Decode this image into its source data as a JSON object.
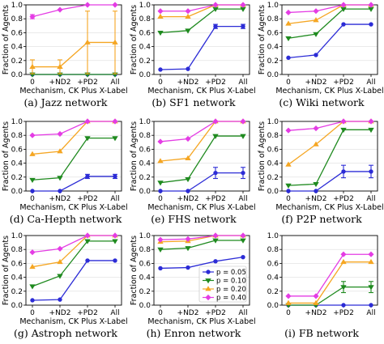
{
  "figure": {
    "colors": {
      "p005": "#2c2cd6",
      "p010": "#1f8a1f",
      "p020": "#f5a623",
      "p040": "#e43ce4"
    },
    "legend": {
      "entries": [
        "p = 0.05",
        "p = 0.10",
        "p = 0.20",
        "p = 0.40"
      ]
    }
  },
  "chart_data": [
    {
      "type": "line",
      "title": "(a) Jazz network",
      "xlabel": "Mechanism, CK Plus X-Label",
      "ylabel": "Fraction of Agents",
      "categories": [
        "0",
        "+ND2",
        "+PD2",
        "All"
      ],
      "yticks": [
        "0.0",
        "0.2",
        "0.4",
        "0.6",
        "0.8",
        "1.0"
      ],
      "ylim": [
        0,
        1
      ],
      "grid": true,
      "series": [
        {
          "key": "p005",
          "values": [
            0.0,
            0.0,
            0.0,
            0.0
          ]
        },
        {
          "key": "p010",
          "values": [
            0.0,
            0.0,
            0.0,
            0.0
          ]
        },
        {
          "key": "p020",
          "values": [
            0.11,
            0.11,
            0.46,
            0.46
          ],
          "err": [
            0.1,
            0.1,
            0.45,
            0.45
          ]
        },
        {
          "key": "p040",
          "values": [
            0.83,
            0.93,
            1.0,
            1.0
          ],
          "err": [
            0.03,
            0,
            0,
            0
          ]
        }
      ]
    },
    {
      "type": "line",
      "title": "(b) SF1 network",
      "xlabel": "Mechanism, CK Plus X-Label",
      "ylabel": "Fraction of Agents",
      "categories": [
        "0",
        "+ND2",
        "+PD2",
        "All"
      ],
      "yticks": [
        "0.0",
        "0.2",
        "0.4",
        "0.6",
        "0.8",
        "1.0"
      ],
      "ylim": [
        0,
        1
      ],
      "grid": true,
      "series": [
        {
          "key": "p005",
          "values": [
            0.07,
            0.08,
            0.69,
            0.69
          ],
          "err": [
            0,
            0,
            0.03,
            0.03
          ]
        },
        {
          "key": "p010",
          "values": [
            0.6,
            0.63,
            0.94,
            0.94
          ]
        },
        {
          "key": "p020",
          "values": [
            0.83,
            0.83,
            1.0,
            1.0
          ]
        },
        {
          "key": "p040",
          "values": [
            0.91,
            0.91,
            1.0,
            1.0
          ]
        }
      ]
    },
    {
      "type": "line",
      "title": "(c) Wiki network",
      "xlabel": "Mechanism, CK Plus X-Label",
      "ylabel": "Fraction of Agents",
      "categories": [
        "0",
        "+ND2",
        "+PD2",
        "All"
      ],
      "yticks": [
        "0.0",
        "0.2",
        "0.4",
        "0.6",
        "0.8",
        "1.0"
      ],
      "ylim": [
        0,
        1
      ],
      "grid": true,
      "series": [
        {
          "key": "p005",
          "values": [
            0.24,
            0.28,
            0.72,
            0.72
          ]
        },
        {
          "key": "p010",
          "values": [
            0.52,
            0.58,
            0.94,
            0.94
          ]
        },
        {
          "key": "p020",
          "values": [
            0.73,
            0.78,
            1.0,
            1.0
          ]
        },
        {
          "key": "p040",
          "values": [
            0.89,
            0.91,
            1.0,
            1.0
          ]
        }
      ]
    },
    {
      "type": "line",
      "title": "(d) Ca-Hepth network",
      "xlabel": "Mechanism, CK Plus X-Label",
      "ylabel": "Fraction of Agents",
      "categories": [
        "0",
        "+ND2",
        "+PD2",
        "All"
      ],
      "yticks": [
        "0.0",
        "0.2",
        "0.4",
        "0.6",
        "0.8",
        "1.0"
      ],
      "ylim": [
        0,
        1
      ],
      "grid": true,
      "series": [
        {
          "key": "p005",
          "values": [
            0.0,
            0.0,
            0.21,
            0.21
          ],
          "err": [
            0,
            0,
            0.03,
            0.03
          ]
        },
        {
          "key": "p010",
          "values": [
            0.16,
            0.19,
            0.76,
            0.76
          ]
        },
        {
          "key": "p020",
          "values": [
            0.53,
            0.57,
            1.0,
            1.0
          ]
        },
        {
          "key": "p040",
          "values": [
            0.8,
            0.82,
            1.0,
            1.0
          ]
        }
      ]
    },
    {
      "type": "line",
      "title": "(e) FHS network",
      "xlabel": "Mechanism, CK Plus X-Label",
      "ylabel": "Fraction of Agents",
      "categories": [
        "0",
        "+ND2",
        "+PD2",
        "All"
      ],
      "yticks": [
        "0.0",
        "0.2",
        "0.4",
        "0.6",
        "0.8",
        "1.0"
      ],
      "ylim": [
        0,
        1
      ],
      "grid": true,
      "series": [
        {
          "key": "p005",
          "values": [
            0.0,
            0.0,
            0.26,
            0.26
          ],
          "err": [
            0,
            0,
            0.08,
            0.08
          ]
        },
        {
          "key": "p010",
          "values": [
            0.12,
            0.17,
            0.79,
            0.79
          ]
        },
        {
          "key": "p020",
          "values": [
            0.43,
            0.47,
            1.0,
            1.0
          ]
        },
        {
          "key": "p040",
          "values": [
            0.71,
            0.75,
            1.0,
            1.0
          ]
        }
      ]
    },
    {
      "type": "line",
      "title": "(f) P2P network",
      "xlabel": "Mechanism, CK Plus X-Label",
      "ylabel": "Fraction of Agents",
      "categories": [
        "0",
        "+ND2",
        "+PD2",
        "All"
      ],
      "yticks": [
        "0.0",
        "0.2",
        "0.4",
        "0.6",
        "0.8",
        "1.0"
      ],
      "ylim": [
        0,
        1
      ],
      "grid": true,
      "series": [
        {
          "key": "p005",
          "values": [
            0.0,
            0.0,
            0.28,
            0.28
          ],
          "err": [
            0,
            0,
            0.09,
            0.09
          ]
        },
        {
          "key": "p010",
          "values": [
            0.08,
            0.1,
            0.88,
            0.88
          ]
        },
        {
          "key": "p020",
          "values": [
            0.38,
            0.67,
            1.0,
            1.0
          ]
        },
        {
          "key": "p040",
          "values": [
            0.87,
            0.9,
            1.0,
            1.0
          ]
        }
      ]
    },
    {
      "type": "line",
      "title": "(g) Astroph network",
      "xlabel": "Mechanism, CK Plus X-Label",
      "ylabel": "Fraction of Agents",
      "categories": [
        "0",
        "+ND2",
        "+PD2",
        "All"
      ],
      "yticks": [
        "0.0",
        "0.2",
        "0.4",
        "0.6",
        "0.8",
        "1.0"
      ],
      "ylim": [
        0,
        1
      ],
      "grid": true,
      "series": [
        {
          "key": "p005",
          "values": [
            0.07,
            0.08,
            0.64,
            0.64
          ]
        },
        {
          "key": "p010",
          "values": [
            0.27,
            0.42,
            0.92,
            0.92
          ]
        },
        {
          "key": "p020",
          "values": [
            0.55,
            0.62,
            1.0,
            1.0
          ]
        },
        {
          "key": "p040",
          "values": [
            0.76,
            0.81,
            1.0,
            1.0
          ]
        }
      ]
    },
    {
      "type": "line",
      "title": "(h) Enron network",
      "xlabel": "Mechanism, CK Plus X-Label",
      "ylabel": "Fraction of Agents",
      "categories": [
        "0",
        "+ND2",
        "+PD2",
        "All"
      ],
      "yticks": [
        "0.0",
        "0.2",
        "0.4",
        "0.6",
        "0.8",
        "1.0"
      ],
      "ylim": [
        0,
        1
      ],
      "grid": true,
      "legend": "lower-right",
      "series": [
        {
          "key": "p005",
          "values": [
            0.53,
            0.54,
            0.63,
            0.69
          ]
        },
        {
          "key": "p010",
          "values": [
            0.8,
            0.82,
            0.93,
            0.93
          ]
        },
        {
          "key": "p020",
          "values": [
            0.91,
            0.92,
            1.0,
            1.0
          ]
        },
        {
          "key": "p040",
          "values": [
            0.94,
            0.95,
            1.0,
            1.0
          ]
        }
      ]
    },
    {
      "type": "line",
      "title": "(i) FB network",
      "xlabel": "",
      "ylabel": "",
      "categories": [
        "0",
        "+ND2",
        "+PD2",
        "All"
      ],
      "yticks": [
        "0.0",
        "0.2",
        "0.4",
        "0.6",
        "0.8",
        "1.0"
      ],
      "ylim": [
        0,
        1
      ],
      "grid": true,
      "series": [
        {
          "key": "p005",
          "values": [
            0.0,
            0.0,
            0.0,
            0.0
          ]
        },
        {
          "key": "p010",
          "values": [
            0.0,
            0.0,
            0.26,
            0.26
          ],
          "err": [
            0,
            0,
            0.08,
            0.08
          ]
        },
        {
          "key": "p020",
          "values": [
            0.03,
            0.03,
            0.62,
            0.62
          ]
        },
        {
          "key": "p040",
          "values": [
            0.13,
            0.13,
            0.73,
            0.73
          ]
        }
      ]
    }
  ]
}
